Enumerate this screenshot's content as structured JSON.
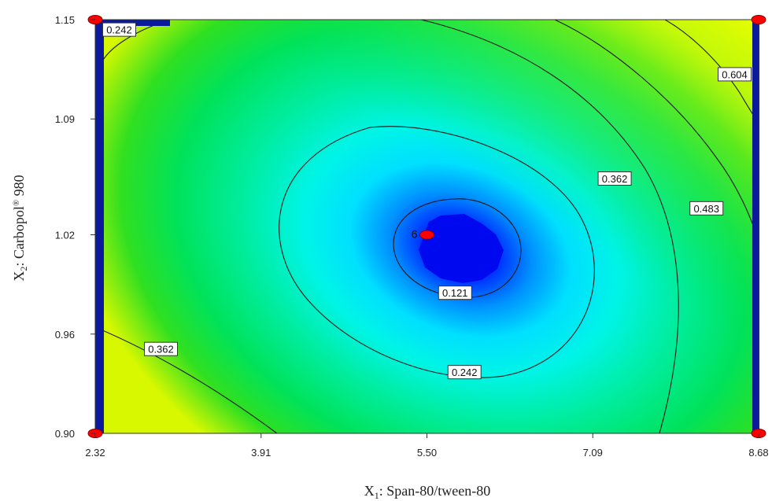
{
  "chart_data": {
    "type": "contour",
    "xlabel_var": "X",
    "xlabel_sub": "1",
    "xlabel_rest": ": Span-80/tween-80",
    "ylabel_var": "X",
    "ylabel_sub": "2",
    "ylabel_rest": ": Carbopol",
    "ylabel_sup": "®",
    "ylabel_tail": " 980",
    "xlim": [
      2.32,
      8.68
    ],
    "ylim": [
      0.9,
      1.15
    ],
    "x_ticks": [
      "2.32",
      "3.91",
      "5.50",
      "7.09",
      "8.68"
    ],
    "y_ticks": [
      "0.90",
      "0.96",
      "1.02",
      "1.09",
      "1.15"
    ],
    "contour_levels": [
      "0.121",
      "0.242",
      "0.362",
      "0.483",
      "0.604"
    ],
    "contour_labels": [
      {
        "text": "0.242",
        "x": 2.55,
        "y": 1.144
      },
      {
        "text": "0.604",
        "x": 8.45,
        "y": 1.117
      },
      {
        "text": "0.362",
        "x": 7.3,
        "y": 1.054
      },
      {
        "text": "0.483",
        "x": 8.18,
        "y": 1.036
      },
      {
        "text": "0.121",
        "x": 5.77,
        "y": 0.985
      },
      {
        "text": "0.242",
        "x": 5.86,
        "y": 0.937
      },
      {
        "text": "0.362",
        "x": 2.95,
        "y": 0.951
      }
    ],
    "design_points": [
      {
        "x": 2.32,
        "y": 0.9
      },
      {
        "x": 2.32,
        "y": 1.15
      },
      {
        "x": 8.68,
        "y": 0.9
      },
      {
        "x": 8.68,
        "y": 1.15
      },
      {
        "x": 5.5,
        "y": 1.02,
        "label": "6"
      }
    ],
    "colors": {
      "low": "#0000ff",
      "mid": "#00ffff",
      "high_green": "#00e040",
      "max_yellow": "#f0ff00",
      "point": "#ff0000",
      "edge_bar": "#0a1a9a"
    }
  }
}
